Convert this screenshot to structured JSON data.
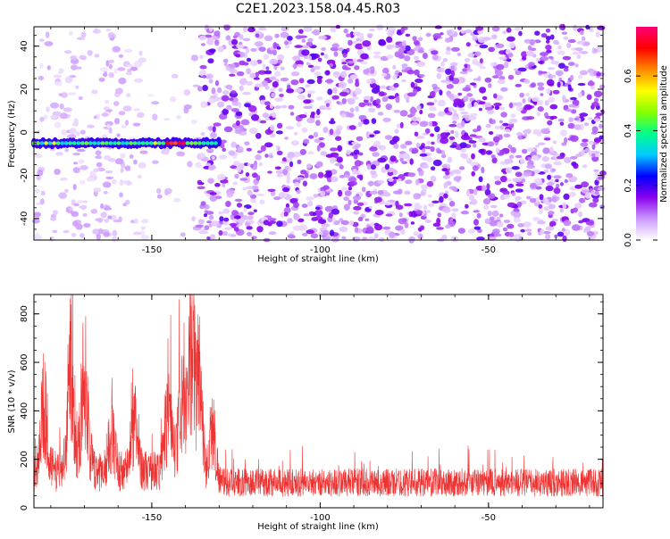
{
  "page": {
    "title": "C2E1.2023.158.04.45.R03"
  },
  "chart_data": [
    {
      "type": "heatmap",
      "name": "spectrogram",
      "xlabel": "Height of straight line (km)",
      "ylabel": "Frequency (Hz)",
      "xlim": [
        -185,
        -16
      ],
      "ylim": [
        -50,
        49
      ],
      "xticks": [
        -150,
        -100,
        -50
      ],
      "yticks": [
        -40,
        -20,
        0,
        20,
        40
      ],
      "grid": false,
      "signal_band": {
        "x_range": [
          -185,
          -130
        ],
        "frequency_hz": -5,
        "peak_x": [
          -146,
          -140
        ]
      },
      "colorbar": {
        "label": "Normalized spectral amplitude",
        "range": [
          0,
          0.78
        ],
        "ticks": [
          0.0,
          0.2,
          0.4,
          0.6
        ],
        "colors": [
          "#ffffff",
          "#cc99ff",
          "#8800ee",
          "#0000ff",
          "#00ccff",
          "#00ff88",
          "#88ff00",
          "#ffff00",
          "#ff8800",
          "#ff0000",
          "#ff0077"
        ]
      }
    },
    {
      "type": "line",
      "name": "snr",
      "xlabel": "Height of straight line (km)",
      "ylabel": "SNR (10 * v/v)",
      "xlim": [
        -185,
        -16
      ],
      "ylim": [
        0,
        880
      ],
      "xticks": [
        -150,
        -100,
        -50
      ],
      "yticks": [
        0,
        200,
        400,
        600,
        800
      ],
      "grid": false,
      "line_color": "#ee3333",
      "baseline": 130,
      "peaks": [
        {
          "x": -182,
          "y": 520
        },
        {
          "x": -174,
          "y": 740
        },
        {
          "x": -170,
          "y": 680
        },
        {
          "x": -162,
          "y": 380
        },
        {
          "x": -155,
          "y": 420
        },
        {
          "x": -145,
          "y": 500
        },
        {
          "x": -141,
          "y": 560
        },
        {
          "x": -138,
          "y": 870
        },
        {
          "x": -136,
          "y": 700
        },
        {
          "x": -132,
          "y": 400
        }
      ]
    }
  ]
}
